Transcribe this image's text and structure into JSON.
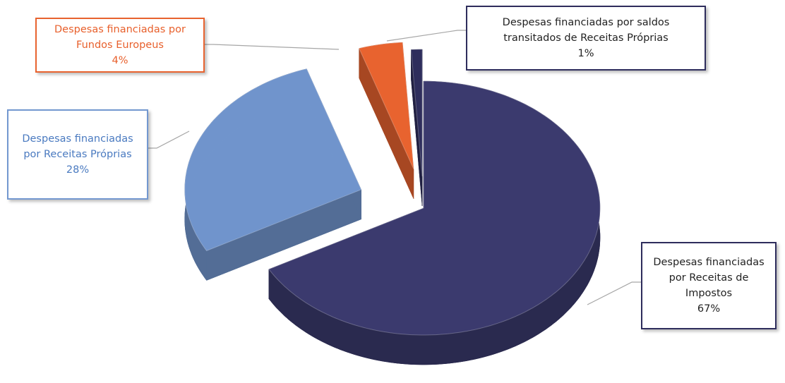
{
  "chart_data": {
    "type": "pie",
    "categories": [
      "Despesas financiadas por Receitas de Impostos",
      "Despesas financiadas por Receitas Próprias",
      "Despesas financiadas por Fundos Europeus",
      "Despesas financiadas por saldos transitados de Receitas Próprias"
    ],
    "values": [
      67,
      28,
      4,
      1
    ],
    "value_labels": [
      "67%",
      "28%",
      "4%",
      "1%"
    ],
    "colors": [
      "#3b3a6e",
      "#7398d0",
      "#e8632f",
      "#2e2d5c"
    ]
  }
}
